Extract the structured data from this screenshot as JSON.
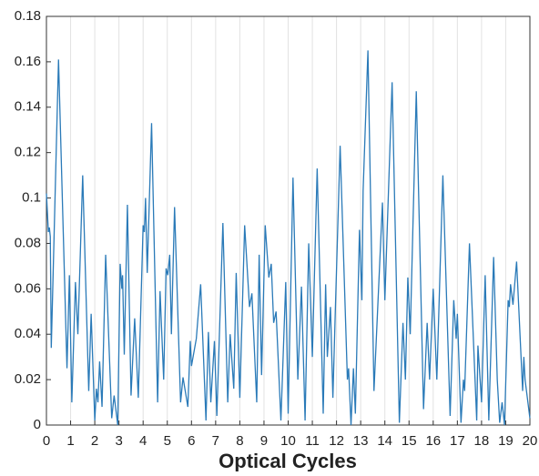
{
  "chart_data": {
    "type": "line",
    "xlabel": "Optical Cycles",
    "color": "#2a7ab8",
    "x": [
      0,
      0.08,
      0.12,
      0.16,
      0.2,
      0.5,
      0.85,
      0.95,
      1.05,
      1.2,
      1.3,
      1.5,
      1.75,
      1.85,
      2.0,
      2.07,
      2.13,
      2.2,
      2.3,
      2.45,
      2.7,
      2.8,
      2.95,
      3.05,
      3.12,
      3.15,
      3.22,
      3.35,
      3.5,
      3.65,
      3.8,
      4.0,
      4.05,
      4.1,
      4.17,
      4.35,
      4.6,
      4.7,
      4.85,
      4.95,
      5.02,
      5.1,
      5.17,
      5.3,
      5.55,
      5.65,
      5.85,
      5.95,
      6.0,
      6.1,
      6.2,
      6.38,
      6.6,
      6.7,
      6.8,
      6.95,
      7.05,
      7.3,
      7.5,
      7.6,
      7.75,
      7.85,
      8.0,
      8.2,
      8.4,
      8.5,
      8.7,
      8.8,
      8.9,
      9.05,
      9.2,
      9.3,
      9.4,
      9.5,
      9.7,
      9.9,
      10.0,
      10.2,
      10.4,
      10.55,
      10.7,
      10.85,
      11.0,
      11.2,
      11.45,
      11.55,
      11.62,
      11.75,
      11.85,
      11.95,
      12.15,
      12.45,
      12.5,
      12.6,
      12.7,
      12.78,
      12.95,
      13.05,
      13.1,
      13.3,
      13.55,
      13.9,
      14.0,
      14.3,
      14.6,
      14.75,
      14.85,
      14.95,
      15.05,
      15.3,
      15.6,
      15.75,
      15.85,
      16.0,
      16.15,
      16.4,
      16.7,
      16.85,
      16.95,
      17.0,
      17.15,
      17.25,
      17.3,
      17.5,
      17.8,
      17.85,
      18.0,
      18.15,
      18.3,
      18.5,
      18.65,
      18.75,
      18.85,
      18.95,
      19.1,
      19.15,
      19.2,
      19.3,
      19.45,
      19.7,
      19.75,
      19.8,
      20
    ],
    "series": [
      {
        "values": [
          0.102,
          0.085,
          0.087,
          0.083,
          0.034,
          0.161,
          0.025,
          0.066,
          0.01,
          0.063,
          0.04,
          0.11,
          0.015,
          0.049,
          0.002,
          0.016,
          0.01,
          0.028,
          0.008,
          0.075,
          0.003,
          0.013,
          0.0,
          0.071,
          0.06,
          0.066,
          0.031,
          0.097,
          0.013,
          0.047,
          0.012,
          0.088,
          0.085,
          0.1,
          0.067,
          0.133,
          0.01,
          0.059,
          0.02,
          0.069,
          0.066,
          0.075,
          0.04,
          0.096,
          0.01,
          0.021,
          0.008,
          0.037,
          0.026,
          0.032,
          0.038,
          0.062,
          0.002,
          0.041,
          0.01,
          0.037,
          0.004,
          0.089,
          0.01,
          0.04,
          0.016,
          0.067,
          0.012,
          0.088,
          0.052,
          0.058,
          0.01,
          0.075,
          0.022,
          0.088,
          0.065,
          0.071,
          0.045,
          0.05,
          0.002,
          0.063,
          0.005,
          0.109,
          0.02,
          0.061,
          0.002,
          0.08,
          0.03,
          0.113,
          0.005,
          0.062,
          0.03,
          0.052,
          0.012,
          0.05,
          0.123,
          0.02,
          0.025,
          0.0,
          0.025,
          0.005,
          0.086,
          0.055,
          0.103,
          0.165,
          0.015,
          0.098,
          0.055,
          0.151,
          0.001,
          0.045,
          0.02,
          0.065,
          0.04,
          0.147,
          0.007,
          0.045,
          0.02,
          0.06,
          0.02,
          0.11,
          0.004,
          0.055,
          0.038,
          0.049,
          0.001,
          0.02,
          0.015,
          0.08,
          0.002,
          0.035,
          0.01,
          0.066,
          0.002,
          0.074,
          0.02,
          0.001,
          0.01,
          0.0,
          0.055,
          0.052,
          0.062,
          0.053,
          0.072,
          0.015,
          0.03,
          0.02,
          0.003
        ]
      }
    ],
    "xlim": [
      0,
      20
    ],
    "xticks": [
      0,
      1,
      2,
      3,
      4,
      5,
      6,
      7,
      8,
      9,
      10,
      11,
      12,
      13,
      14,
      15,
      16,
      17,
      18,
      19,
      20
    ],
    "ylim": [
      0,
      0.18
    ],
    "yticks": [
      0,
      0.02,
      0.04,
      0.06,
      0.08,
      0.1,
      0.12,
      0.14,
      0.16,
      0.18
    ],
    "grid": "x"
  }
}
